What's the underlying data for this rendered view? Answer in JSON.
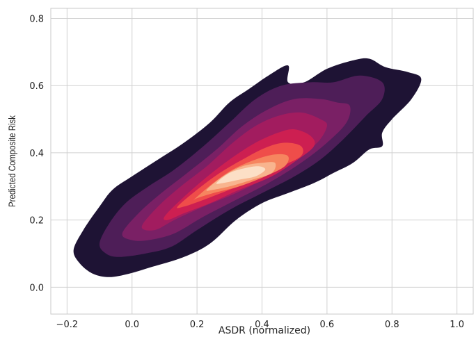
{
  "chart_data": {
    "type": "kde_contour",
    "title": "",
    "xlabel": "ASDR (normalized)",
    "ylabel": "Predicted Composite Risk",
    "xlim": [
      -0.25,
      1.05
    ],
    "ylim": [
      -0.08,
      0.83
    ],
    "xticks": [
      -0.2,
      0.0,
      0.2,
      0.4,
      0.6,
      0.8,
      1.0
    ],
    "xtick_labels": [
      "−0.2",
      "0.0",
      "0.2",
      "0.4",
      "0.6",
      "0.8",
      "1.0"
    ],
    "yticks": [
      0.0,
      0.2,
      0.4,
      0.6,
      0.8
    ],
    "ytick_labels": [
      "0.0",
      "0.2",
      "0.4",
      "0.6",
      "0.8"
    ],
    "grid": true,
    "legend": "none",
    "levels": [
      {
        "level": 1,
        "color": "#1e1334",
        "outline": [
          [
            -0.18,
            0.11
          ],
          [
            -0.15,
            0.17
          ],
          [
            -0.1,
            0.24
          ],
          [
            -0.06,
            0.29
          ],
          [
            0.0,
            0.33
          ],
          [
            0.08,
            0.38
          ],
          [
            0.16,
            0.43
          ],
          [
            0.24,
            0.49
          ],
          [
            0.3,
            0.55
          ],
          [
            0.36,
            0.59
          ],
          [
            0.42,
            0.63
          ],
          [
            0.48,
            0.66
          ],
          [
            0.48,
            0.61
          ],
          [
            0.53,
            0.61
          ],
          [
            0.6,
            0.65
          ],
          [
            0.68,
            0.675
          ],
          [
            0.73,
            0.68
          ],
          [
            0.78,
            0.655
          ],
          [
            0.85,
            0.64
          ],
          [
            0.89,
            0.62
          ],
          [
            0.86,
            0.56
          ],
          [
            0.8,
            0.5
          ],
          [
            0.77,
            0.46
          ],
          [
            0.77,
            0.42
          ],
          [
            0.73,
            0.41
          ],
          [
            0.68,
            0.37
          ],
          [
            0.62,
            0.34
          ],
          [
            0.56,
            0.31
          ],
          [
            0.48,
            0.28
          ],
          [
            0.4,
            0.25
          ],
          [
            0.32,
            0.2
          ],
          [
            0.24,
            0.13
          ],
          [
            0.16,
            0.09
          ],
          [
            0.06,
            0.06
          ],
          [
            -0.01,
            0.04
          ],
          [
            -0.07,
            0.03
          ],
          [
            -0.12,
            0.04
          ],
          [
            -0.16,
            0.07
          ]
        ]
      },
      {
        "level": 2,
        "color": "#4e1e58",
        "outline": [
          [
            -0.1,
            0.13
          ],
          [
            -0.07,
            0.19
          ],
          [
            -0.02,
            0.25
          ],
          [
            0.05,
            0.3
          ],
          [
            0.13,
            0.35
          ],
          [
            0.22,
            0.42
          ],
          [
            0.3,
            0.49
          ],
          [
            0.38,
            0.56
          ],
          [
            0.46,
            0.6
          ],
          [
            0.55,
            0.61
          ],
          [
            0.62,
            0.61
          ],
          [
            0.7,
            0.63
          ],
          [
            0.77,
            0.61
          ],
          [
            0.77,
            0.56
          ],
          [
            0.72,
            0.51
          ],
          [
            0.65,
            0.44
          ],
          [
            0.58,
            0.38
          ],
          [
            0.5,
            0.33
          ],
          [
            0.4,
            0.28
          ],
          [
            0.3,
            0.23
          ],
          [
            0.2,
            0.17
          ],
          [
            0.12,
            0.12
          ],
          [
            0.04,
            0.1
          ],
          [
            -0.04,
            0.09
          ],
          [
            -0.08,
            0.1
          ]
        ]
      },
      {
        "level": 3,
        "color": "#7a2065",
        "outline": [
          [
            -0.03,
            0.16
          ],
          [
            0.02,
            0.22
          ],
          [
            0.09,
            0.28
          ],
          [
            0.17,
            0.34
          ],
          [
            0.26,
            0.41
          ],
          [
            0.34,
            0.48
          ],
          [
            0.42,
            0.53
          ],
          [
            0.5,
            0.56
          ],
          [
            0.58,
            0.56
          ],
          [
            0.63,
            0.55
          ],
          [
            0.67,
            0.54
          ],
          [
            0.66,
            0.49
          ],
          [
            0.6,
            0.43
          ],
          [
            0.52,
            0.37
          ],
          [
            0.42,
            0.31
          ],
          [
            0.32,
            0.26
          ],
          [
            0.22,
            0.21
          ],
          [
            0.13,
            0.16
          ],
          [
            0.05,
            0.14
          ],
          [
            0.0,
            0.14
          ]
        ]
      },
      {
        "level": 4,
        "color": "#a21c5f",
        "outline": [
          [
            0.03,
            0.18
          ],
          [
            0.08,
            0.24
          ],
          [
            0.15,
            0.3
          ],
          [
            0.23,
            0.36
          ],
          [
            0.31,
            0.43
          ],
          [
            0.38,
            0.48
          ],
          [
            0.45,
            0.51
          ],
          [
            0.52,
            0.52
          ],
          [
            0.58,
            0.5
          ],
          [
            0.6,
            0.48
          ],
          [
            0.57,
            0.43
          ],
          [
            0.5,
            0.38
          ],
          [
            0.42,
            0.33
          ],
          [
            0.32,
            0.28
          ],
          [
            0.22,
            0.24
          ],
          [
            0.13,
            0.2
          ],
          [
            0.07,
            0.17
          ]
        ]
      },
      {
        "level": 5,
        "color": "#cd1f51",
        "outline": [
          [
            0.1,
            0.21
          ],
          [
            0.15,
            0.26
          ],
          [
            0.22,
            0.32
          ],
          [
            0.3,
            0.38
          ],
          [
            0.38,
            0.43
          ],
          [
            0.45,
            0.46
          ],
          [
            0.5,
            0.47
          ],
          [
            0.55,
            0.45
          ],
          [
            0.56,
            0.42
          ],
          [
            0.51,
            0.38
          ],
          [
            0.43,
            0.33
          ],
          [
            0.33,
            0.29
          ],
          [
            0.24,
            0.25
          ],
          [
            0.16,
            0.22
          ],
          [
            0.11,
            0.2
          ]
        ]
      },
      {
        "level": 6,
        "color": "#ef4d4a",
        "outline": [
          [
            0.14,
            0.24
          ],
          [
            0.2,
            0.29
          ],
          [
            0.27,
            0.34
          ],
          [
            0.34,
            0.38
          ],
          [
            0.41,
            0.415
          ],
          [
            0.47,
            0.43
          ],
          [
            0.52,
            0.42
          ],
          [
            0.52,
            0.39
          ],
          [
            0.46,
            0.36
          ],
          [
            0.38,
            0.32
          ],
          [
            0.3,
            0.29
          ],
          [
            0.22,
            0.26
          ],
          [
            0.16,
            0.24
          ]
        ]
      },
      {
        "level": 7,
        "color": "#f6855f",
        "outline": [
          [
            0.19,
            0.26
          ],
          [
            0.25,
            0.31
          ],
          [
            0.31,
            0.35
          ],
          [
            0.38,
            0.38
          ],
          [
            0.44,
            0.395
          ],
          [
            0.48,
            0.39
          ],
          [
            0.47,
            0.36
          ],
          [
            0.41,
            0.33
          ],
          [
            0.33,
            0.3
          ],
          [
            0.25,
            0.28
          ],
          [
            0.2,
            0.265
          ]
        ]
      },
      {
        "level": 8,
        "color": "#f8b48e",
        "outline": [
          [
            0.23,
            0.29
          ],
          [
            0.28,
            0.33
          ],
          [
            0.34,
            0.36
          ],
          [
            0.4,
            0.37
          ],
          [
            0.44,
            0.37
          ],
          [
            0.43,
            0.34
          ],
          [
            0.37,
            0.32
          ],
          [
            0.3,
            0.3
          ],
          [
            0.25,
            0.29
          ]
        ]
      },
      {
        "level": 9,
        "color": "#fcdfc6",
        "outline": [
          [
            0.26,
            0.31
          ],
          [
            0.3,
            0.34
          ],
          [
            0.35,
            0.355
          ],
          [
            0.39,
            0.36
          ],
          [
            0.41,
            0.35
          ],
          [
            0.38,
            0.33
          ],
          [
            0.33,
            0.32
          ],
          [
            0.28,
            0.31
          ]
        ]
      }
    ]
  }
}
